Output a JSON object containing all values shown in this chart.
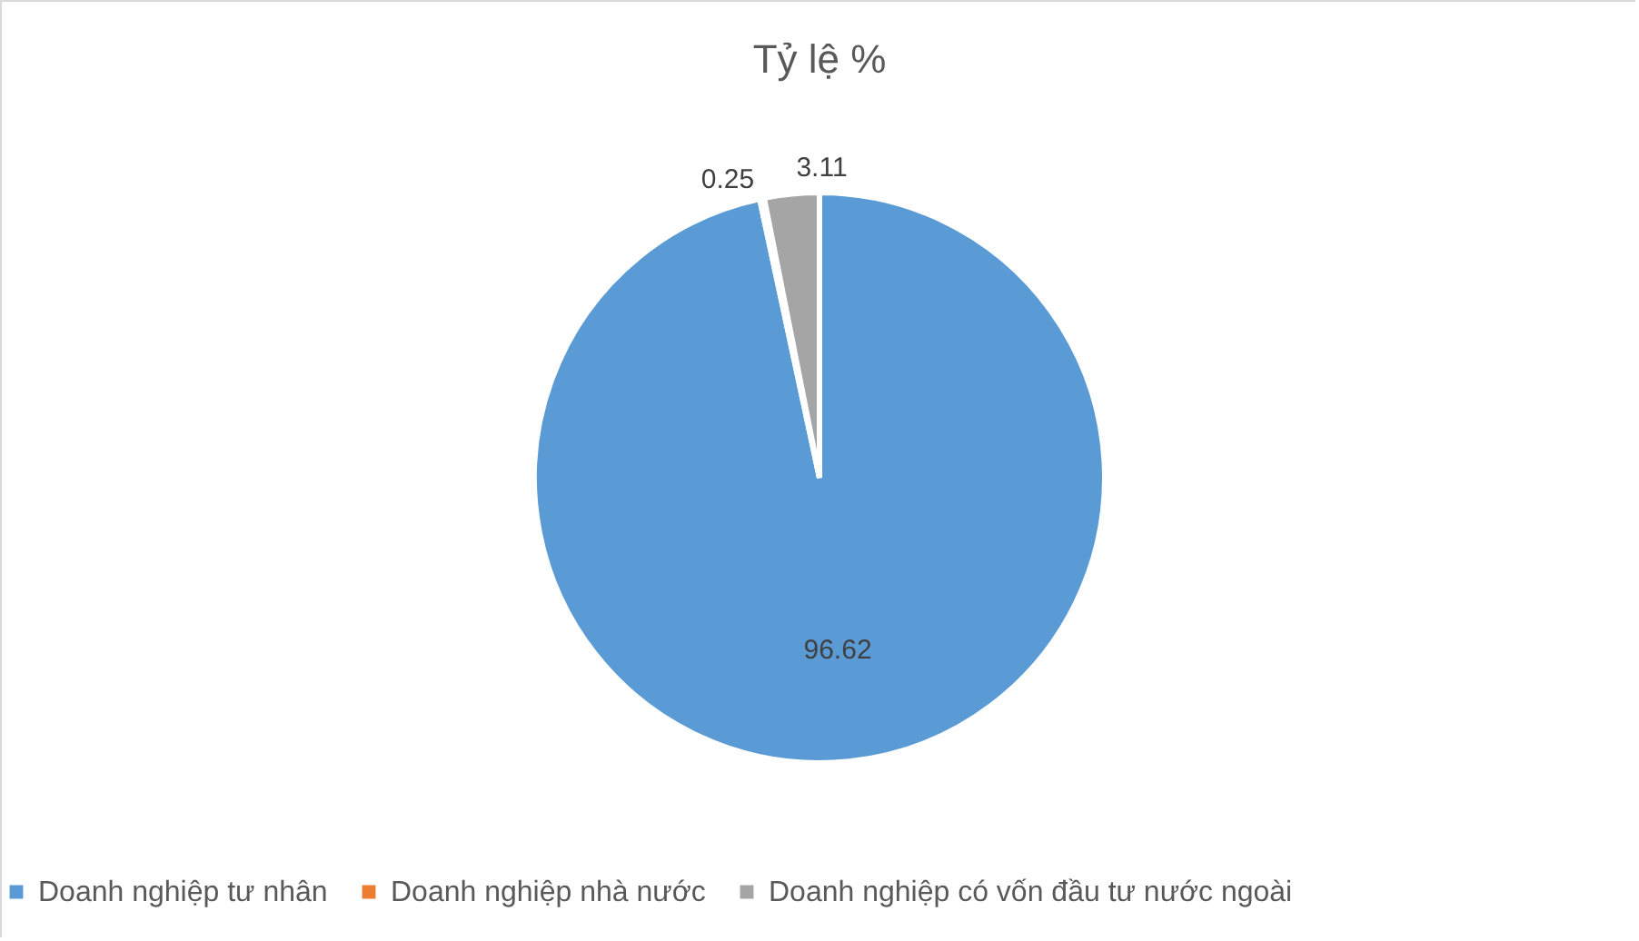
{
  "chart_data": {
    "type": "pie",
    "title": "Tỷ lệ %",
    "categories": [
      "Doanh nghiệp tư nhân",
      "Doanh nghiệp nhà nước",
      "Doanh nghiệp có vốn đầu tư nước ngoài"
    ],
    "values": [
      96.62,
      0.25,
      3.11
    ],
    "colors": [
      "#5b9bd5",
      "#ed7d31",
      "#a5a5a5"
    ],
    "data_labels": true,
    "legend": "bottom"
  }
}
